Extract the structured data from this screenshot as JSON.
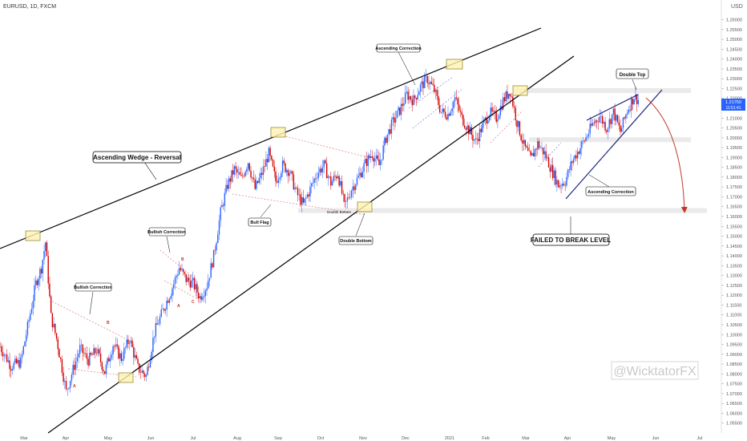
{
  "header": {
    "symbol_label": "EURUSD, 1D, FXCM"
  },
  "currency_label": "USD",
  "price_tags": [
    "1.21750",
    "11:51:41"
  ],
  "watermark": "@WicktatorFX",
  "annotations": {
    "ascending_wedge": "Ascending Wedge - Reversal",
    "bullish_correction_1": "Bullish Correction",
    "bullish_correction_2": "Bullish Correction",
    "bull_flag": "Bull Flag",
    "double_bottom_box": "Double Bottom",
    "double_bottom_band": "Double Bottom",
    "ascending_correction_top": "Ascending Correction",
    "ascending_correction_right": "Ascending Correction",
    "double_top": "Double Top",
    "failed_level": "FAILED TO BREAK LEVEL",
    "abc_1": [
      "A",
      "B"
    ],
    "abc_2": [
      "A",
      "B",
      "C"
    ]
  },
  "colors": {
    "up": "#2962ff",
    "down": "#d50000",
    "wedge": "#000000",
    "arrow": "#c0392b",
    "box_fill": "#fff7cc",
    "box_stroke": "#8a7a2a",
    "band": "#d9d9d9"
  },
  "chart_data": {
    "type": "candlestick",
    "title": "",
    "instrument": "EURUSD",
    "timeframe": "1D",
    "y_axis": {
      "ylim": [
        1.05,
        1.27
      ],
      "ticks": [
        "1.26000",
        "1.25500",
        "1.25000",
        "1.24500",
        "1.24000",
        "1.23500",
        "1.23000",
        "1.22500",
        "1.22000",
        "1.21500",
        "1.21000",
        "1.20500",
        "1.20000",
        "1.19500",
        "1.19000",
        "1.18500",
        "1.18000",
        "1.17500",
        "1.17000",
        "1.16500",
        "1.16000",
        "1.15500",
        "1.15000",
        "1.14500",
        "1.14000",
        "1.13500",
        "1.13000",
        "1.12500",
        "1.12000",
        "1.11500",
        "1.11000",
        "1.10500",
        "1.10000",
        "1.09500",
        "1.09000",
        "1.08500",
        "1.08000",
        "1.07500",
        "1.07000",
        "1.06500",
        "1.06000",
        "1.05500"
      ]
    },
    "x_axis": {
      "tick_labels": [
        "Mar",
        "Apr",
        "May",
        "Jun",
        "Jul",
        "Aug",
        "Sep",
        "Oct",
        "Nov",
        "Dec",
        "2021",
        "Feb",
        "Mar",
        "Apr",
        "May",
        "Jun",
        "Jul"
      ]
    },
    "current_price": 1.2175,
    "horizontal_levels": [
      1.224,
      1.199,
      1.163
    ],
    "trend_path": [
      [
        0,
        1.094
      ],
      [
        8,
        1.084
      ],
      [
        15,
        1.086
      ],
      [
        22,
        1.111
      ],
      [
        26,
        1.126
      ],
      [
        30,
        1.134
      ],
      [
        33,
        1.147
      ],
      [
        37,
        1.109
      ],
      [
        41,
        1.098
      ],
      [
        45,
        1.083
      ],
      [
        48,
        1.071
      ],
      [
        52,
        1.08
      ],
      [
        58,
        1.093
      ],
      [
        64,
        1.087
      ],
      [
        70,
        1.092
      ],
      [
        76,
        1.081
      ],
      [
        82,
        1.095
      ],
      [
        88,
        1.088
      ],
      [
        94,
        1.098
      ],
      [
        100,
        1.083
      ],
      [
        106,
        1.079
      ],
      [
        112,
        1.101
      ],
      [
        118,
        1.112
      ],
      [
        124,
        1.122
      ],
      [
        130,
        1.134
      ],
      [
        135,
        1.128
      ],
      [
        140,
        1.126
      ],
      [
        145,
        1.119
      ],
      [
        150,
        1.125
      ],
      [
        155,
        1.14
      ],
      [
        160,
        1.162
      ],
      [
        165,
        1.176
      ],
      [
        170,
        1.184
      ],
      [
        175,
        1.179
      ],
      [
        180,
        1.188
      ],
      [
        185,
        1.174
      ],
      [
        190,
        1.182
      ],
      [
        195,
        1.192
      ],
      [
        200,
        1.178
      ],
      [
        205,
        1.186
      ],
      [
        210,
        1.183
      ],
      [
        215,
        1.172
      ],
      [
        220,
        1.166
      ],
      [
        225,
        1.174
      ],
      [
        230,
        1.182
      ],
      [
        235,
        1.186
      ],
      [
        240,
        1.177
      ],
      [
        245,
        1.182
      ],
      [
        250,
        1.165
      ],
      [
        255,
        1.174
      ],
      [
        260,
        1.18
      ],
      [
        265,
        1.187
      ],
      [
        270,
        1.192
      ],
      [
        275,
        1.186
      ],
      [
        280,
        1.2
      ],
      [
        285,
        1.208
      ],
      [
        290,
        1.214
      ],
      [
        295,
        1.222
      ],
      [
        300,
        1.219
      ],
      [
        305,
        1.226
      ],
      [
        310,
        1.23
      ],
      [
        315,
        1.224
      ],
      [
        320,
        1.213
      ],
      [
        325,
        1.212
      ],
      [
        330,
        1.22
      ],
      [
        335,
        1.21
      ],
      [
        340,
        1.204
      ],
      [
        345,
        1.198
      ],
      [
        350,
        1.206
      ],
      [
        355,
        1.213
      ],
      [
        360,
        1.21
      ],
      [
        365,
        1.219
      ],
      [
        370,
        1.224
      ],
      [
        375,
        1.208
      ],
      [
        380,
        1.196
      ],
      [
        385,
        1.189
      ],
      [
        390,
        1.197
      ],
      [
        395,
        1.192
      ],
      [
        400,
        1.184
      ],
      [
        405,
        1.176
      ],
      [
        410,
        1.178
      ],
      [
        415,
        1.188
      ],
      [
        420,
        1.194
      ],
      [
        425,
        1.2
      ],
      [
        430,
        1.207
      ],
      [
        435,
        1.211
      ],
      [
        440,
        1.205
      ],
      [
        445,
        1.213
      ],
      [
        450,
        1.203
      ],
      [
        455,
        1.214
      ],
      [
        460,
        1.221
      ],
      [
        465,
        1.218
      ]
    ]
  }
}
